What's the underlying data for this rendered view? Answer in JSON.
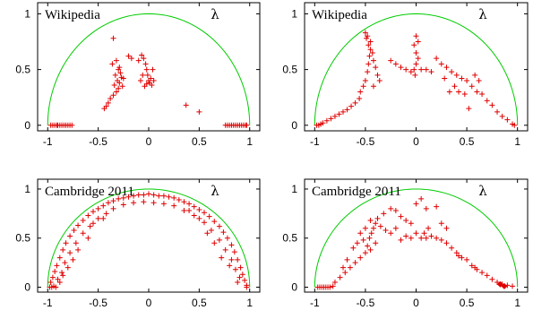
{
  "chart_data": [
    {
      "type": "scatter",
      "title": "Wikipedia",
      "legend": "λ",
      "xlim": [
        -1.1,
        1.1
      ],
      "ylim": [
        -0.05,
        1.1
      ],
      "xticks": [
        "-1",
        "-0.5",
        "0",
        "0.5",
        "1"
      ],
      "yticks": [
        "0",
        "0.5",
        "1"
      ],
      "marker": "+",
      "color": "#e00000",
      "curve_color": "#00cc00",
      "curve": "unit semicircle",
      "points": [
        [
          -0.97,
          0
        ],
        [
          -0.95,
          0
        ],
        [
          -0.93,
          0
        ],
        [
          -0.91,
          0
        ],
        [
          -0.9,
          0
        ],
        [
          -0.88,
          0
        ],
        [
          -0.86,
          0
        ],
        [
          -0.84,
          0
        ],
        [
          -0.82,
          0
        ],
        [
          -0.8,
          0
        ],
        [
          -0.78,
          0
        ],
        [
          -0.76,
          0
        ],
        [
          0.76,
          0
        ],
        [
          0.78,
          0
        ],
        [
          0.8,
          0
        ],
        [
          0.82,
          0
        ],
        [
          0.84,
          0
        ],
        [
          0.86,
          0
        ],
        [
          0.88,
          0
        ],
        [
          0.9,
          0
        ],
        [
          0.92,
          0
        ],
        [
          0.94,
          0
        ],
        [
          0.96,
          0
        ],
        [
          0.97,
          0
        ],
        [
          -0.35,
          0.78
        ],
        [
          -0.32,
          0.58
        ],
        [
          -0.36,
          0.55
        ],
        [
          -0.3,
          0.5
        ],
        [
          -0.28,
          0.47
        ],
        [
          -0.33,
          0.45
        ],
        [
          -0.27,
          0.43
        ],
        [
          -0.25,
          0.42
        ],
        [
          -0.31,
          0.4
        ],
        [
          -0.29,
          0.38
        ],
        [
          -0.34,
          0.36
        ],
        [
          -0.26,
          0.35
        ],
        [
          -0.3,
          0.33
        ],
        [
          -0.32,
          0.3
        ],
        [
          -0.35,
          0.27
        ],
        [
          -0.38,
          0.24
        ],
        [
          -0.4,
          0.2
        ],
        [
          -0.42,
          0.17
        ],
        [
          -0.44,
          0.15
        ],
        [
          -0.29,
          0.52
        ],
        [
          -0.2,
          0.62
        ],
        [
          -0.17,
          0.6
        ],
        [
          -0.1,
          0.58
        ],
        [
          -0.07,
          0.63
        ],
        [
          -0.05,
          0.6
        ],
        [
          -0.03,
          0.55
        ],
        [
          -0.02,
          0.5
        ],
        [
          -0.01,
          0.45
        ],
        [
          0,
          0.4
        ],
        [
          0.01,
          0.38
        ],
        [
          0.02,
          0.42
        ],
        [
          -0.04,
          0.35
        ],
        [
          -0.02,
          0.37
        ],
        [
          0.03,
          0.36
        ],
        [
          -0.08,
          0.4
        ],
        [
          0.05,
          0.4
        ],
        [
          0.04,
          0.5
        ],
        [
          -0.06,
          0.45
        ],
        [
          0.37,
          0.18
        ],
        [
          0.5,
          0.12
        ]
      ]
    },
    {
      "type": "scatter",
      "title": "Wikipedia",
      "legend": "λ",
      "xlim": [
        -1.1,
        1.1
      ],
      "ylim": [
        -0.05,
        1.1
      ],
      "xticks": [
        "-1",
        "-0.5",
        "0",
        "0.5",
        "1"
      ],
      "yticks": [
        "0",
        "0.5",
        "1"
      ],
      "marker": "+",
      "color": "#e00000",
      "curve_color": "#00cc00",
      "curve": "unit semicircle",
      "points": [
        [
          -0.98,
          0
        ],
        [
          -0.96,
          0
        ],
        [
          -0.94,
          0.01
        ],
        [
          -0.92,
          0.02
        ],
        [
          -0.88,
          0.04
        ],
        [
          -0.84,
          0.06
        ],
        [
          -0.8,
          0.08
        ],
        [
          -0.76,
          0.1
        ],
        [
          -0.72,
          0.12
        ],
        [
          -0.68,
          0.14
        ],
        [
          -0.64,
          0.17
        ],
        [
          -0.6,
          0.2
        ],
        [
          -0.56,
          0.24
        ],
        [
          -0.55,
          0.3
        ],
        [
          -0.52,
          0.35
        ],
        [
          -0.5,
          0.4
        ],
        [
          -0.48,
          0.48
        ],
        [
          -0.47,
          0.55
        ],
        [
          -0.46,
          0.62
        ],
        [
          -0.45,
          0.68
        ],
        [
          -0.47,
          0.72
        ],
        [
          -0.49,
          0.78
        ],
        [
          -0.5,
          0.83
        ],
        [
          -0.48,
          0.8
        ],
        [
          -0.45,
          0.75
        ],
        [
          -0.43,
          0.65
        ],
        [
          -0.42,
          0.58
        ],
        [
          -0.4,
          0.52
        ],
        [
          -0.38,
          0.45
        ],
        [
          -0.36,
          0.4
        ],
        [
          -0.42,
          0.35
        ],
        [
          -0.25,
          0.58
        ],
        [
          -0.2,
          0.55
        ],
        [
          -0.15,
          0.52
        ],
        [
          -0.1,
          0.5
        ],
        [
          -0.05,
          0.48
        ],
        [
          -0.02,
          0.5
        ],
        [
          0,
          0.55
        ],
        [
          0.02,
          0.6
        ],
        [
          0,
          0.65
        ],
        [
          -0.02,
          0.72
        ],
        [
          0,
          0.8
        ],
        [
          0.02,
          0.75
        ],
        [
          -0.01,
          0.45
        ],
        [
          0.05,
          0.5
        ],
        [
          0.1,
          0.5
        ],
        [
          0.15,
          0.48
        ],
        [
          0.2,
          0.6
        ],
        [
          0.25,
          0.55
        ],
        [
          0.3,
          0.52
        ],
        [
          0.35,
          0.48
        ],
        [
          0.4,
          0.45
        ],
        [
          0.45,
          0.42
        ],
        [
          0.5,
          0.4
        ],
        [
          0.55,
          0.35
        ],
        [
          0.6,
          0.3
        ],
        [
          0.65,
          0.28
        ],
        [
          0.7,
          0.22
        ],
        [
          0.75,
          0.18
        ],
        [
          0.8,
          0.12
        ],
        [
          0.85,
          0.08
        ],
        [
          0.9,
          0.05
        ],
        [
          0.95,
          0.01
        ],
        [
          0.97,
          0
        ],
        [
          0.33,
          0.3
        ],
        [
          0.42,
          0.3
        ],
        [
          0.48,
          0.28
        ],
        [
          0.52,
          0.15
        ],
        [
          0.38,
          0.35
        ],
        [
          0.28,
          0.42
        ],
        [
          0.62,
          0.4
        ],
        [
          0.58,
          0.45
        ]
      ]
    },
    {
      "type": "scatter",
      "title": "Cambridge 2011",
      "legend": "λ",
      "xlim": [
        -1.1,
        1.1
      ],
      "ylim": [
        -0.05,
        1.1
      ],
      "xticks": [
        "-1",
        "-0.5",
        "0",
        "0.5",
        "1"
      ],
      "yticks": [
        "0",
        "0.5",
        "1"
      ],
      "marker": "+",
      "color": "#e00000",
      "curve_color": "#00cc00",
      "curve": "unit semicircle",
      "points": [
        [
          -0.98,
          0
        ],
        [
          -0.96,
          0
        ],
        [
          -0.94,
          0.01
        ],
        [
          -0.92,
          0
        ],
        [
          -0.97,
          0.05
        ],
        [
          -0.95,
          0.1
        ],
        [
          -0.93,
          0.16
        ],
        [
          -0.91,
          0.22
        ],
        [
          -0.88,
          0.3
        ],
        [
          -0.85,
          0.38
        ],
        [
          -0.82,
          0.45
        ],
        [
          -0.78,
          0.52
        ],
        [
          -0.74,
          0.58
        ],
        [
          -0.7,
          0.63
        ],
        [
          -0.65,
          0.68
        ],
        [
          -0.6,
          0.73
        ],
        [
          -0.55,
          0.77
        ],
        [
          -0.5,
          0.8
        ],
        [
          -0.45,
          0.83
        ],
        [
          -0.4,
          0.86
        ],
        [
          -0.35,
          0.88
        ],
        [
          -0.3,
          0.9
        ],
        [
          -0.25,
          0.91
        ],
        [
          -0.2,
          0.92
        ],
        [
          -0.15,
          0.93
        ],
        [
          -0.1,
          0.94
        ],
        [
          -0.05,
          0.94
        ],
        [
          0,
          0.95
        ],
        [
          0.05,
          0.94
        ],
        [
          0.1,
          0.93
        ],
        [
          0.15,
          0.93
        ],
        [
          0.2,
          0.92
        ],
        [
          0.25,
          0.91
        ],
        [
          0.3,
          0.89
        ],
        [
          0.35,
          0.87
        ],
        [
          0.4,
          0.85
        ],
        [
          0.45,
          0.82
        ],
        [
          0.5,
          0.79
        ],
        [
          0.55,
          0.76
        ],
        [
          0.6,
          0.72
        ],
        [
          0.65,
          0.67
        ],
        [
          0.7,
          0.62
        ],
        [
          0.74,
          0.56
        ],
        [
          0.78,
          0.5
        ],
        [
          0.82,
          0.43
        ],
        [
          0.85,
          0.36
        ],
        [
          0.88,
          0.28
        ],
        [
          0.91,
          0.2
        ],
        [
          0.93,
          0.13
        ],
        [
          0.95,
          0.07
        ],
        [
          0.97,
          0.02
        ],
        [
          0.97,
          0
        ],
        [
          -0.9,
          0.08
        ],
        [
          -0.86,
          0.15
        ],
        [
          -0.83,
          0.25
        ],
        [
          -0.78,
          0.35
        ],
        [
          -0.72,
          0.45
        ],
        [
          -0.65,
          0.55
        ],
        [
          -0.58,
          0.62
        ],
        [
          -0.5,
          0.7
        ],
        [
          -0.42,
          0.75
        ],
        [
          -0.35,
          0.8
        ],
        [
          -0.25,
          0.84
        ],
        [
          -0.15,
          0.86
        ],
        [
          -0.05,
          0.87
        ],
        [
          0.05,
          0.86
        ],
        [
          0.15,
          0.85
        ],
        [
          0.25,
          0.83
        ],
        [
          0.35,
          0.78
        ],
        [
          0.45,
          0.73
        ],
        [
          0.55,
          0.66
        ],
        [
          0.62,
          0.58
        ],
        [
          0.7,
          0.48
        ],
        [
          0.76,
          0.38
        ],
        [
          0.82,
          0.28
        ],
        [
          0.86,
          0.18
        ],
        [
          0.9,
          0.1
        ],
        [
          -0.88,
          0.05
        ],
        [
          -0.8,
          0.2
        ],
        [
          -0.7,
          0.38
        ],
        [
          -0.6,
          0.5
        ],
        [
          -0.75,
          0.28
        ],
        [
          -0.85,
          0.12
        ],
        [
          0.8,
          0.22
        ],
        [
          0.72,
          0.3
        ],
        [
          0.65,
          0.45
        ],
        [
          0.58,
          0.55
        ],
        [
          0.88,
          0.05
        ],
        [
          -0.55,
          0.65
        ],
        [
          -0.45,
          0.7
        ],
        [
          0.4,
          0.78
        ],
        [
          0.5,
          0.7
        ]
      ]
    },
    {
      "type": "scatter",
      "title": "Cambridge 2011",
      "legend": "λ",
      "xlim": [
        -1.1,
        1.1
      ],
      "ylim": [
        -0.05,
        1.1
      ],
      "xticks": [
        "-1",
        "-0.5",
        "0",
        "0.5",
        "1"
      ],
      "yticks": [
        "0",
        "0.5",
        "1"
      ],
      "marker": "+",
      "color": "#e00000",
      "curve_color": "#00cc00",
      "curve": "unit semicircle",
      "diamonds": [
        [
          0.83,
          0.03
        ],
        [
          0.87,
          0.01
        ]
      ],
      "points": [
        [
          -0.97,
          0
        ],
        [
          -0.95,
          0
        ],
        [
          -0.93,
          0
        ],
        [
          -0.91,
          0
        ],
        [
          -0.89,
          0
        ],
        [
          -0.87,
          0
        ],
        [
          -0.85,
          0
        ],
        [
          -0.82,
          0.01
        ],
        [
          -0.8,
          0.05
        ],
        [
          -0.75,
          0.1
        ],
        [
          -0.7,
          0.15
        ],
        [
          -0.65,
          0.2
        ],
        [
          -0.6,
          0.25
        ],
        [
          -0.55,
          0.3
        ],
        [
          -0.5,
          0.35
        ],
        [
          -0.48,
          0.42
        ],
        [
          -0.46,
          0.5
        ],
        [
          -0.44,
          0.55
        ],
        [
          -0.42,
          0.6
        ],
        [
          -0.4,
          0.65
        ],
        [
          -0.38,
          0.7
        ],
        [
          -0.45,
          0.68
        ],
        [
          -0.5,
          0.6
        ],
        [
          -0.55,
          0.55
        ],
        [
          -0.58,
          0.45
        ],
        [
          -0.52,
          0.48
        ],
        [
          -0.62,
          0.4
        ],
        [
          -0.68,
          0.28
        ],
        [
          -0.72,
          0.2
        ],
        [
          -0.35,
          0.62
        ],
        [
          -0.3,
          0.58
        ],
        [
          -0.32,
          0.75
        ],
        [
          -0.25,
          0.8
        ],
        [
          -0.2,
          0.78
        ],
        [
          -0.15,
          0.72
        ],
        [
          -0.1,
          0.68
        ],
        [
          -0.05,
          0.65
        ],
        [
          0,
          0.55
        ],
        [
          0.05,
          0.5
        ],
        [
          0.1,
          0.5
        ],
        [
          0.15,
          0.52
        ],
        [
          0.2,
          0.5
        ],
        [
          0.25,
          0.48
        ],
        [
          0.3,
          0.45
        ],
        [
          0.35,
          0.4
        ],
        [
          0.4,
          0.35
        ],
        [
          0.45,
          0.3
        ],
        [
          0.5,
          0.28
        ],
        [
          0.55,
          0.22
        ],
        [
          0.6,
          0.18
        ],
        [
          0.65,
          0.15
        ],
        [
          0.7,
          0.12
        ],
        [
          0.75,
          0.08
        ],
        [
          0.8,
          0.05
        ],
        [
          0.85,
          0.03
        ],
        [
          0.9,
          0.02
        ],
        [
          0.95,
          0.01
        ],
        [
          -0.05,
          0.5
        ],
        [
          -0.1,
          0.52
        ],
        [
          -0.15,
          0.48
        ],
        [
          0.08,
          0.55
        ],
        [
          0.12,
          0.6
        ],
        [
          -0.2,
          0.6
        ],
        [
          -0.25,
          0.55
        ],
        [
          0.0,
          0.85
        ],
        [
          0.05,
          0.9
        ],
        [
          0.1,
          0.8
        ],
        [
          0.2,
          0.82
        ],
        [
          0.3,
          0.6
        ],
        [
          0.25,
          0.65
        ],
        [
          -0.4,
          0.45
        ],
        [
          -0.45,
          0.38
        ],
        [
          0.42,
          0.32
        ],
        [
          0.58,
          0.2
        ]
      ]
    }
  ]
}
